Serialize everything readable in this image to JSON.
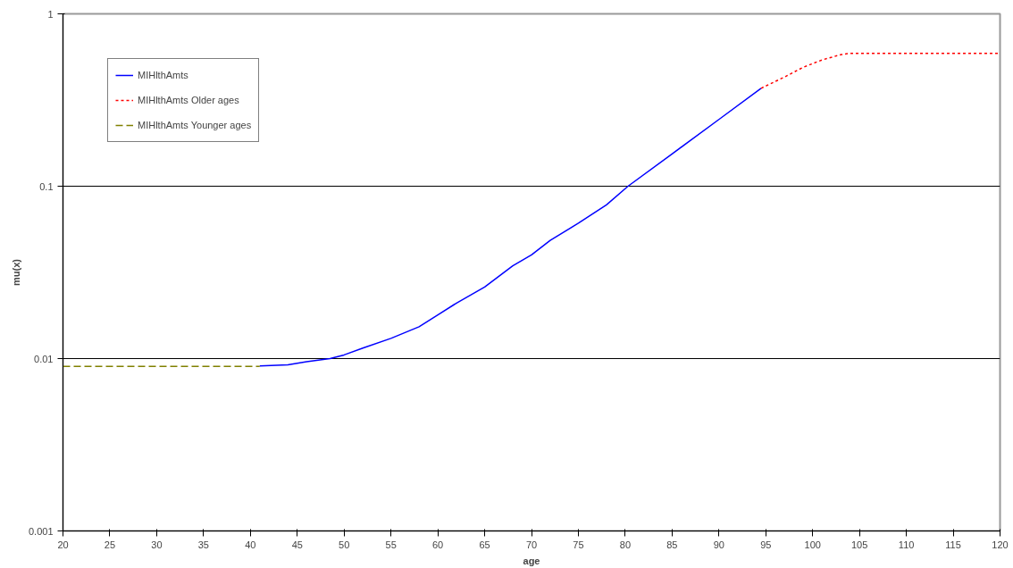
{
  "chart_data": {
    "type": "line",
    "xlabel": "age",
    "ylabel": "mu(x)",
    "log": "y",
    "grid": "y",
    "legend": "top left",
    "xlim": [
      20,
      120
    ],
    "xticks": [
      20,
      25,
      30,
      35,
      40,
      45,
      50,
      55,
      60,
      65,
      70,
      75,
      80,
      85,
      90,
      95,
      100,
      105,
      110,
      115,
      120
    ],
    "ylim": [
      0.001,
      1
    ],
    "yticks": [
      0.001,
      0.01,
      0.1,
      1
    ],
    "series": [
      {
        "name": "MIHlthAmts",
        "color": "#0000ff",
        "line_style": "solid",
        "x": [
          41,
          44,
          46,
          48.5,
          50,
          52,
          55,
          58,
          60,
          62,
          65,
          68,
          70,
          72,
          75,
          78,
          80.3,
          85,
          90,
          94.5
        ],
        "values": [
          0.00905,
          0.0092,
          0.0096,
          0.01,
          0.0105,
          0.0115,
          0.0131,
          0.0153,
          0.0179,
          0.021,
          0.026,
          0.0345,
          0.04,
          0.0485,
          0.061,
          0.078,
          0.1,
          0.154,
          0.244,
          0.37
        ]
      },
      {
        "name": "MIHlthAmts Older ages",
        "color": "#ff0000",
        "line_style": "dotted",
        "x": [
          94.5,
          97,
          99,
          101,
          103,
          104,
          120
        ],
        "values": [
          0.37,
          0.43,
          0.49,
          0.54,
          0.58,
          0.59,
          0.59
        ]
      },
      {
        "name": "MIHlthAmts Younger ages",
        "color": "#808000",
        "line_style": "dashed",
        "x": [
          20,
          41
        ],
        "values": [
          0.009,
          0.009
        ]
      }
    ]
  }
}
